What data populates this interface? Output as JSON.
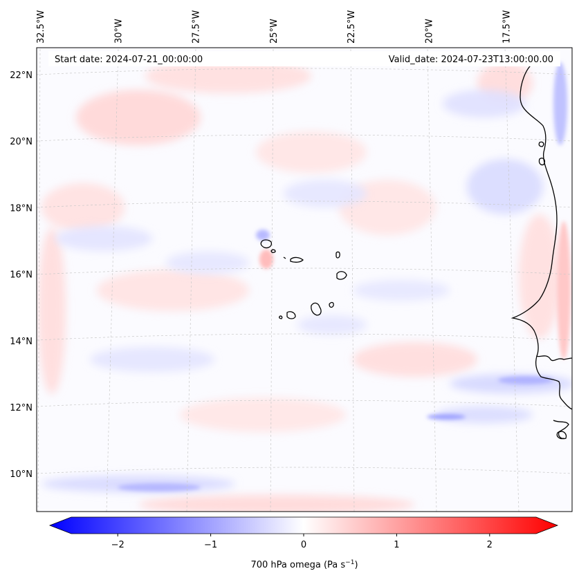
{
  "map": {
    "start_label": "Start date: 2024-07-21_00:00:00",
    "valid_label": "Valid_date: 2024-07-23T13:00:00.00",
    "lon_ticks": [
      {
        "label": "32.5°W",
        "lon": -32.5
      },
      {
        "label": "30°W",
        "lon": -30
      },
      {
        "label": "27.5°W",
        "lon": -27.5
      },
      {
        "label": "25°W",
        "lon": -25
      },
      {
        "label": "22.5°W",
        "lon": -22.5
      },
      {
        "label": "20°W",
        "lon": -20
      },
      {
        "label": "17.5°W",
        "lon": -17.5
      }
    ],
    "lat_ticks": [
      {
        "label": "22°N",
        "lat": 22
      },
      {
        "label": "20°N",
        "lat": 20
      },
      {
        "label": "18°N",
        "lat": 18
      },
      {
        "label": "16°N",
        "lat": 16
      },
      {
        "label": "14°N",
        "lat": 14
      },
      {
        "label": "12°N",
        "lat": 12
      },
      {
        "label": "10°N",
        "lat": 10
      }
    ],
    "field_colors": {
      "pos": "#ff0000",
      "neg": "#0000ff",
      "neutral": "#ffffff"
    },
    "coastline_color": "#000000",
    "gridline_color": "#c8c8c8"
  },
  "colorbar": {
    "label_text": "700 hPa omega (Pa s",
    "label_sup": "−1",
    "label_close": ")",
    "min": -2.75,
    "max": 2.75,
    "ticks": [
      {
        "label": "−2",
        "value": -2
      },
      {
        "label": "−1",
        "value": -1
      },
      {
        "label": "0",
        "value": 0
      },
      {
        "label": "1",
        "value": 1
      },
      {
        "label": "2",
        "value": 2
      }
    ],
    "extend": "both"
  }
}
